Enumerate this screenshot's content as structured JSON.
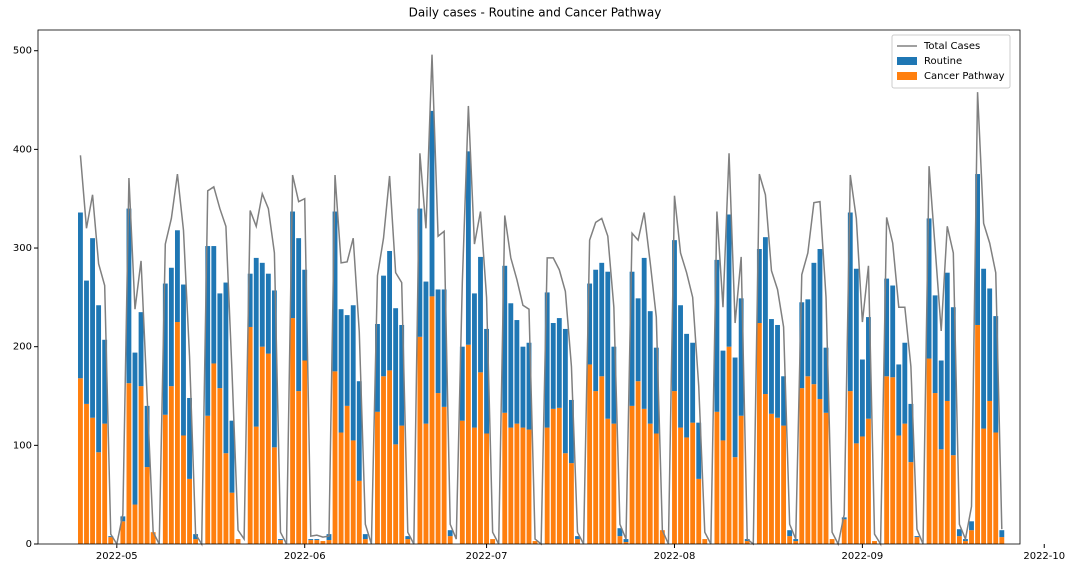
{
  "chart_data": {
    "type": "bar",
    "stacked": true,
    "title": "Daily cases - Routine and Cancer Pathway",
    "legend": "upper right",
    "x": [
      "2022-04-25",
      "2022-04-26",
      "2022-04-27",
      "2022-04-28",
      "2022-04-29",
      "2022-04-30",
      "2022-05-01",
      "2022-05-02",
      "2022-05-03",
      "2022-05-04",
      "2022-05-05",
      "2022-05-06",
      "2022-05-07",
      "2022-05-08",
      "2022-05-09",
      "2022-05-10",
      "2022-05-11",
      "2022-05-12",
      "2022-05-13",
      "2022-05-14",
      "2022-05-15",
      "2022-05-16",
      "2022-05-17",
      "2022-05-18",
      "2022-05-19",
      "2022-05-20",
      "2022-05-21",
      "2022-05-22",
      "2022-05-23",
      "2022-05-24",
      "2022-05-25",
      "2022-05-26",
      "2022-05-27",
      "2022-05-28",
      "2022-05-29",
      "2022-05-30",
      "2022-05-31",
      "2022-06-01",
      "2022-06-02",
      "2022-06-03",
      "2022-06-04",
      "2022-06-05",
      "2022-06-06",
      "2022-06-07",
      "2022-06-08",
      "2022-06-09",
      "2022-06-10",
      "2022-06-11",
      "2022-06-12",
      "2022-06-13",
      "2022-06-14",
      "2022-06-15",
      "2022-06-16",
      "2022-06-17",
      "2022-06-18",
      "2022-06-19",
      "2022-06-20",
      "2022-06-21",
      "2022-06-22",
      "2022-06-23",
      "2022-06-24",
      "2022-06-25",
      "2022-06-26",
      "2022-06-27",
      "2022-06-28",
      "2022-06-29",
      "2022-06-30",
      "2022-07-01",
      "2022-07-02",
      "2022-07-03",
      "2022-07-04",
      "2022-07-05",
      "2022-07-06",
      "2022-07-07",
      "2022-07-08",
      "2022-07-09",
      "2022-07-10",
      "2022-07-11",
      "2022-07-12",
      "2022-07-13",
      "2022-07-14",
      "2022-07-15",
      "2022-07-16",
      "2022-07-17",
      "2022-07-18",
      "2022-07-19",
      "2022-07-20",
      "2022-07-21",
      "2022-07-22",
      "2022-07-23",
      "2022-07-24",
      "2022-07-25",
      "2022-07-26",
      "2022-07-27",
      "2022-07-28",
      "2022-07-29",
      "2022-07-30",
      "2022-07-31",
      "2022-08-01",
      "2022-08-02",
      "2022-08-03",
      "2022-08-04",
      "2022-08-05",
      "2022-08-06",
      "2022-08-07",
      "2022-08-08",
      "2022-08-09",
      "2022-08-10",
      "2022-08-11",
      "2022-08-12",
      "2022-08-13",
      "2022-08-14",
      "2022-08-15",
      "2022-08-16",
      "2022-08-17",
      "2022-08-18",
      "2022-08-19",
      "2022-08-20",
      "2022-08-21",
      "2022-08-22",
      "2022-08-23",
      "2022-08-24",
      "2022-08-25",
      "2022-08-26",
      "2022-08-27",
      "2022-08-28",
      "2022-08-29",
      "2022-08-30",
      "2022-08-31",
      "2022-09-01",
      "2022-09-02",
      "2022-09-03",
      "2022-09-04",
      "2022-09-05",
      "2022-09-06",
      "2022-09-07",
      "2022-09-08",
      "2022-09-09",
      "2022-09-10",
      "2022-09-11",
      "2022-09-12",
      "2022-09-13",
      "2022-09-14",
      "2022-09-15",
      "2022-09-16",
      "2022-09-17",
      "2022-09-18",
      "2022-09-19",
      "2022-09-20",
      "2022-09-21",
      "2022-09-22",
      "2022-09-23",
      "2022-09-24"
    ],
    "series": [
      {
        "name": "Total Cases",
        "type": "line",
        "color": "#808080",
        "values": [
          394,
          320,
          354,
          284,
          262,
          10,
          0,
          30,
          371,
          238,
          287,
          150,
          12,
          0,
          304,
          330,
          375,
          318,
          190,
          10,
          0,
          358,
          362,
          340,
          322,
          175,
          14,
          5,
          338,
          322,
          355,
          340,
          295,
          12,
          0,
          374,
          347,
          350,
          8,
          9,
          7,
          8,
          374,
          285,
          286,
          310,
          215,
          20,
          0,
          272,
          310,
          373,
          275,
          265,
          12,
          0,
          396,
          320,
          496,
          312,
          317,
          20,
          5,
          265,
          444,
          304,
          337,
          250,
          12,
          0,
          333,
          290,
          268,
          242,
          238,
          5,
          0,
          290,
          290,
          278,
          256,
          180,
          12,
          0,
          308,
          326,
          330,
          312,
          240,
          20,
          5,
          315,
          308,
          336,
          285,
          230,
          14,
          0,
          353,
          295,
          275,
          250,
          160,
          12,
          0,
          337,
          240,
          396,
          224,
          291,
          5,
          0,
          375,
          354,
          277,
          258,
          220,
          20,
          5,
          273,
          295,
          346,
          347,
          250,
          12,
          0,
          30,
          374,
          330,
          225,
          282,
          10,
          0,
          331,
          305,
          240,
          240,
          180,
          15,
          0,
          383,
          300,
          216,
          322,
          295,
          20,
          5,
          38,
          458,
          325,
          305,
          275,
          15
        ]
      },
      {
        "name": "Routine",
        "type": "bar",
        "color": "#1f77b4",
        "values": [
          168,
          125,
          182,
          149,
          85,
          1,
          0,
          5,
          177,
          154,
          75,
          62,
          0,
          0,
          133,
          120,
          93,
          153,
          82,
          5,
          0,
          172,
          119,
          96,
          173,
          73,
          0,
          0,
          54,
          171,
          85,
          81,
          159,
          1,
          0,
          108,
          155,
          92,
          1,
          1,
          0,
          6,
          162,
          125,
          92,
          137,
          101,
          5,
          0,
          89,
          102,
          121,
          138,
          102,
          3,
          0,
          130,
          144,
          188,
          105,
          119,
          6,
          0,
          75,
          196,
          136,
          117,
          106,
          0,
          0,
          149,
          126,
          105,
          82,
          88,
          0,
          0,
          137,
          87,
          91,
          126,
          64,
          3,
          0,
          82,
          123,
          115,
          149,
          78,
          8,
          3,
          136,
          84,
          153,
          114,
          87,
          0,
          0,
          153,
          124,
          105,
          81,
          57,
          0,
          0,
          154,
          91,
          134,
          101,
          119,
          2,
          0,
          75,
          159,
          96,
          94,
          50,
          6,
          2,
          87,
          78,
          123,
          152,
          66,
          0,
          0,
          2,
          181,
          177,
          78,
          103,
          0,
          0,
          99,
          93,
          72,
          82,
          59,
          1,
          0,
          142,
          99,
          90,
          130,
          150,
          7,
          2,
          9,
          153,
          162,
          114,
          118,
          7
        ]
      },
      {
        "name": "Cancer Pathway",
        "type": "bar",
        "color": "#ff7f0e",
        "values": [
          168,
          142,
          128,
          93,
          122,
          7,
          0,
          23,
          163,
          40,
          160,
          78,
          12,
          0,
          131,
          160,
          225,
          110,
          66,
          5,
          0,
          130,
          183,
          158,
          92,
          52,
          5,
          0,
          220,
          119,
          200,
          193,
          98,
          4,
          0,
          229,
          155,
          186,
          4,
          4,
          3,
          4,
          175,
          113,
          140,
          105,
          64,
          5,
          0,
          134,
          170,
          176,
          101,
          120,
          5,
          0,
          210,
          122,
          251,
          153,
          139,
          8,
          0,
          125,
          202,
          118,
          174,
          112,
          5,
          0,
          133,
          118,
          122,
          118,
          116,
          3,
          0,
          118,
          137,
          138,
          92,
          82,
          5,
          0,
          182,
          155,
          170,
          127,
          122,
          8,
          2,
          140,
          165,
          137,
          122,
          112,
          14,
          0,
          155,
          118,
          108,
          123,
          66,
          5,
          0,
          134,
          105,
          200,
          88,
          130,
          3,
          0,
          224,
          152,
          132,
          128,
          120,
          8,
          3,
          158,
          170,
          162,
          147,
          133,
          5,
          0,
          25,
          155,
          102,
          109,
          127,
          3,
          0,
          170,
          169,
          110,
          122,
          83,
          7,
          0,
          188,
          153,
          96,
          145,
          90,
          8,
          3,
          14,
          222,
          117,
          145,
          113,
          7
        ]
      }
    ],
    "xlim": [
      "2022-04-18",
      "2022-09-27"
    ],
    "xticks": [
      {
        "value": "2022-05-01",
        "label": "2022-05"
      },
      {
        "value": "2022-06-01",
        "label": "2022-06"
      },
      {
        "value": "2022-07-01",
        "label": "2022-07"
      },
      {
        "value": "2022-08-01",
        "label": "2022-08"
      },
      {
        "value": "2022-09-01",
        "label": "2022-09"
      },
      {
        "value": "2022-10-01",
        "label": "2022-10"
      }
    ],
    "ylim": [
      0,
      521
    ],
    "yticks": [
      0,
      100,
      200,
      300,
      400,
      500
    ]
  }
}
